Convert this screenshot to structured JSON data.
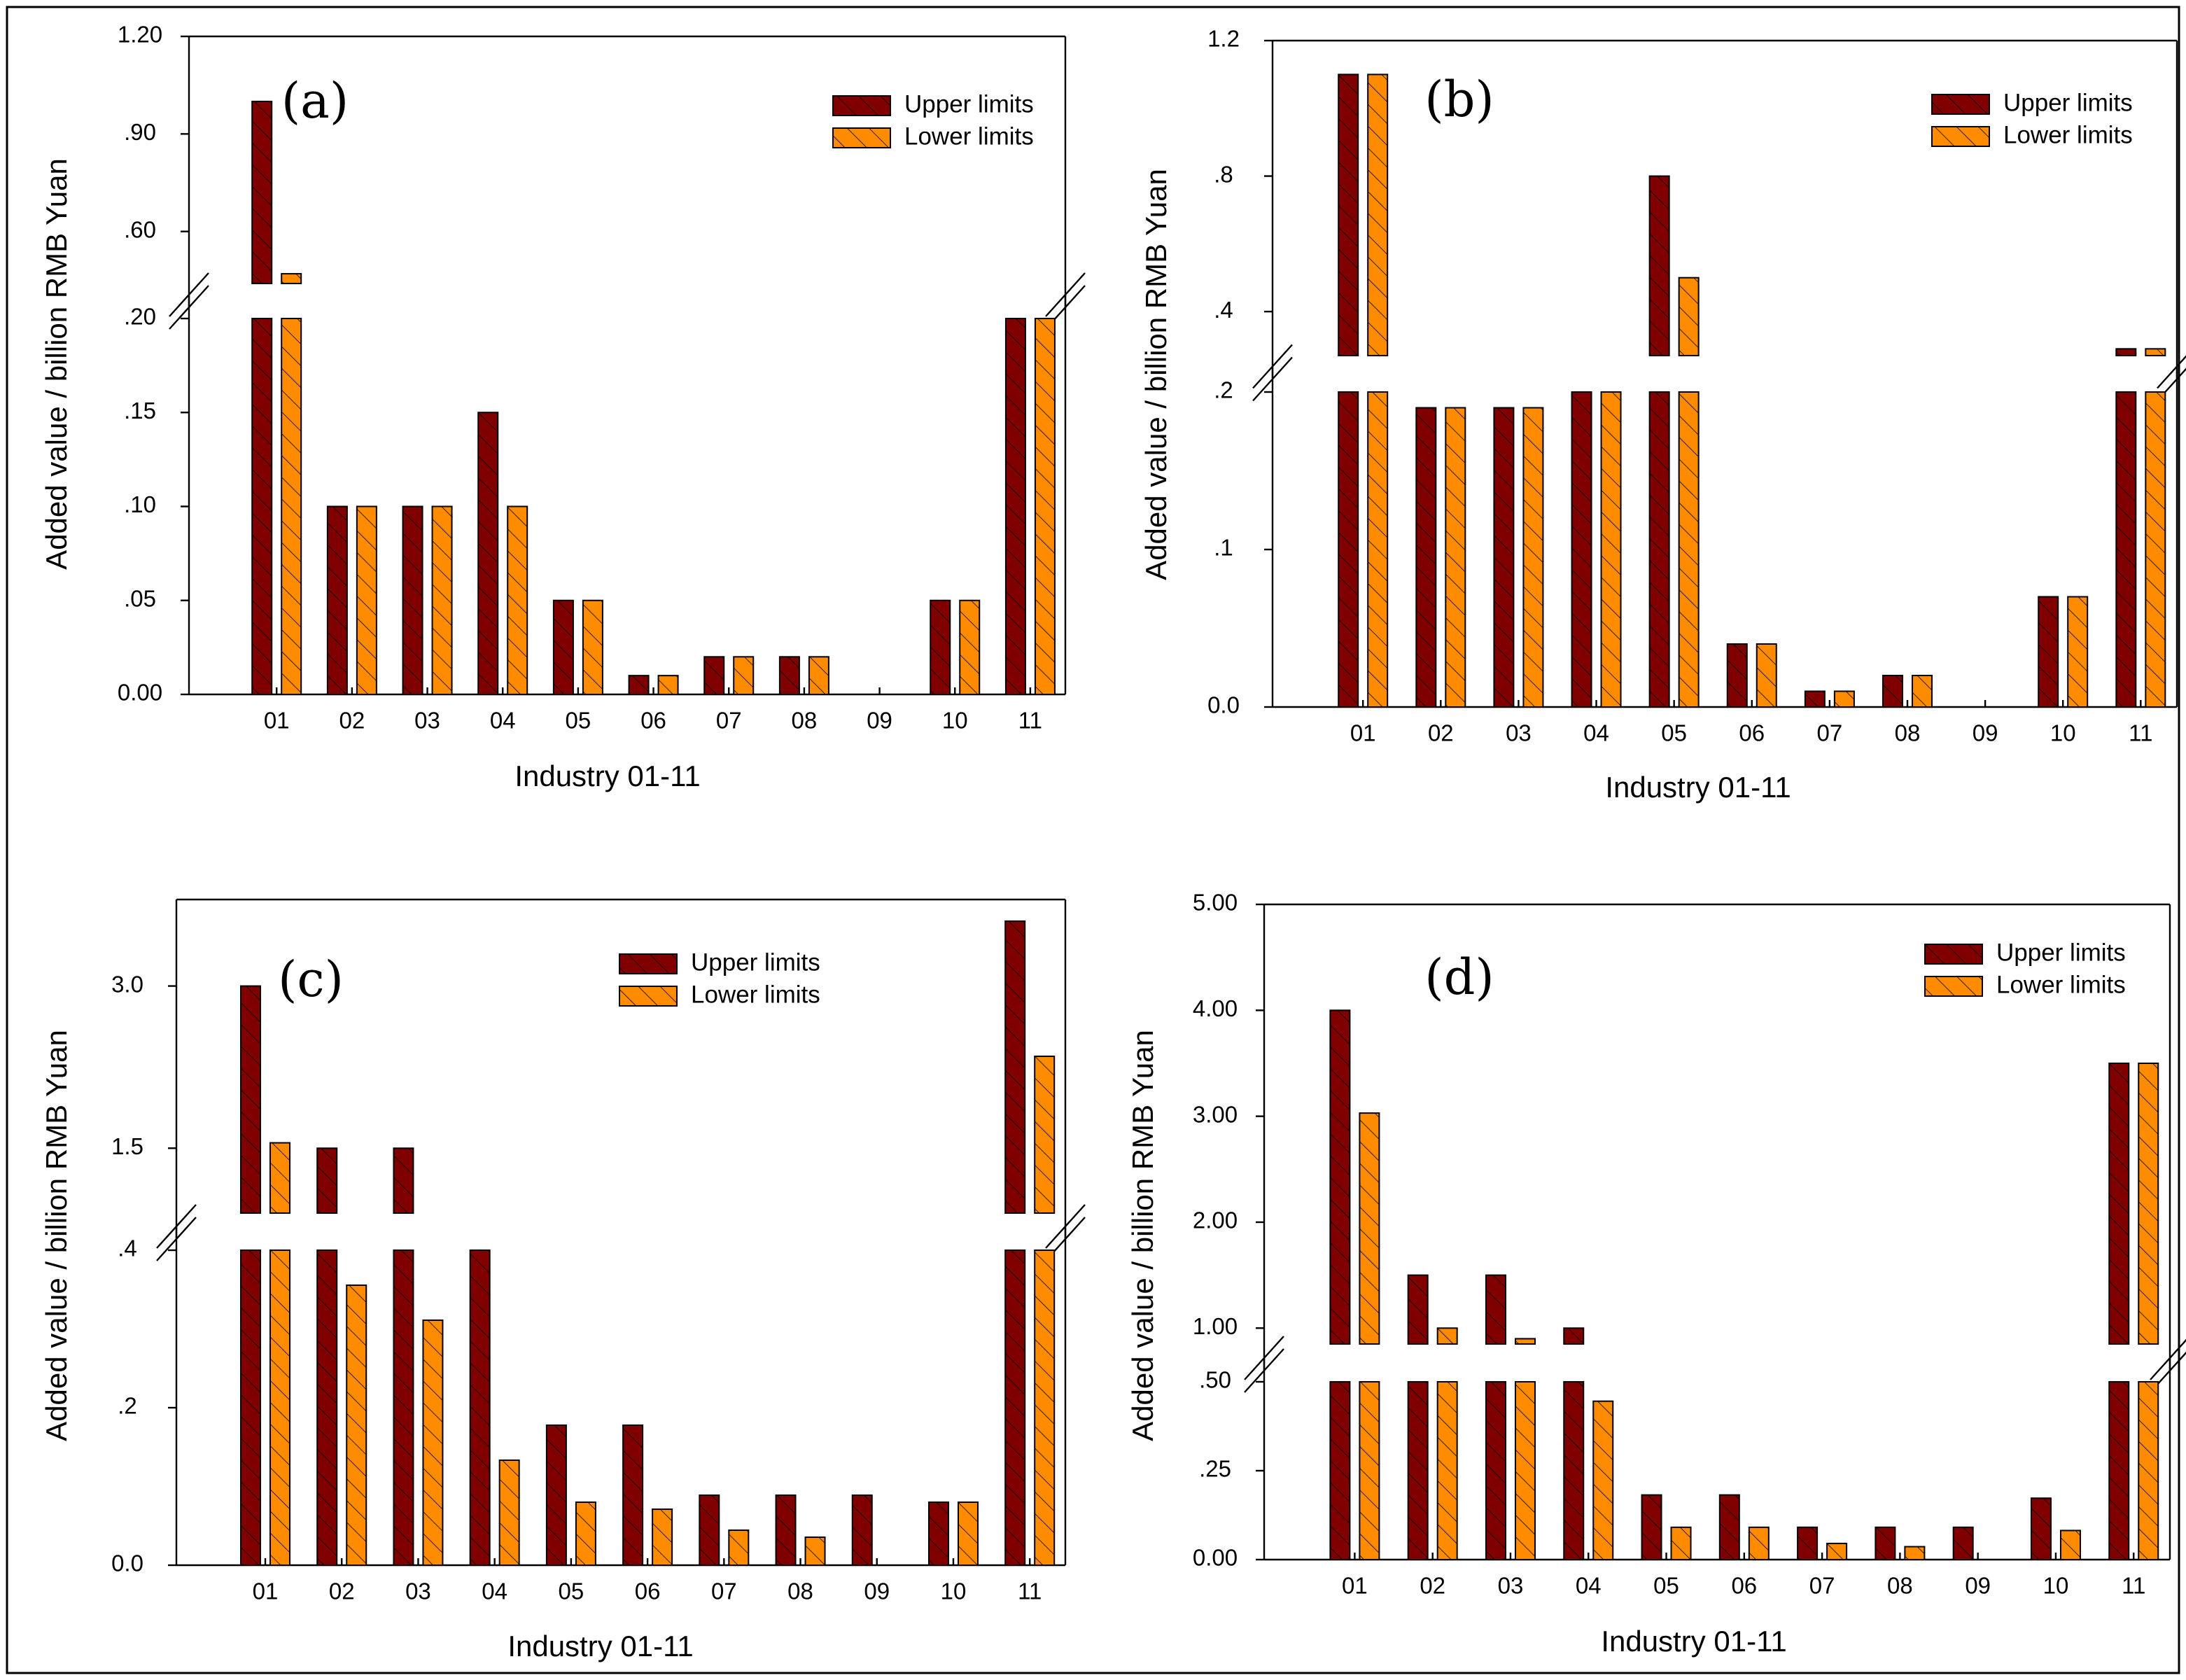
{
  "colors": {
    "upper": "#800000",
    "lower": "#ff8c00",
    "edge": "#000000",
    "background": "#ffffff"
  },
  "chart_data": [
    {
      "type": "bar",
      "panel_label": "(a)",
      "xlabel": "Industry 01-11",
      "ylabel": "Added value / billion RMB Yuan",
      "categories": [
        "01",
        "02",
        "03",
        "04",
        "05",
        "06",
        "07",
        "08",
        "09",
        "10",
        "11"
      ],
      "axis_break": true,
      "lower_ylim": [
        0,
        0.2
      ],
      "lower_yticks": [
        "0.00",
        ".05",
        ".10",
        ".15",
        ".20"
      ],
      "upper_ylim": [
        0.44,
        1.2
      ],
      "upper_yticks": [
        ".60",
        ".90",
        "1.20"
      ],
      "series": [
        {
          "name": "Upper limits",
          "values": [
            1.0,
            0.1,
            0.1,
            0.15,
            0.05,
            0.01,
            0.02,
            0.02,
            0.0,
            0.05,
            0.2
          ]
        },
        {
          "name": "Lower limits",
          "values": [
            0.47,
            0.1,
            0.1,
            0.1,
            0.05,
            0.01,
            0.02,
            0.02,
            0.0,
            0.05,
            0.2
          ]
        }
      ],
      "legend": "top-right",
      "grid": false
    },
    {
      "type": "bar",
      "panel_label": "(b)",
      "xlabel": "Industry 01-11",
      "ylabel": "Added value / billion RMB Yuan",
      "categories": [
        "01",
        "02",
        "03",
        "04",
        "05",
        "06",
        "07",
        "08",
        "09",
        "10",
        "11"
      ],
      "axis_break": true,
      "lower_ylim": [
        0,
        0.2
      ],
      "lower_yticks": [
        "0.0",
        ".1",
        ".2"
      ],
      "upper_ylim": [
        0.27,
        1.2
      ],
      "upper_yticks": [
        ".4",
        ".8",
        "1.2"
      ],
      "series": [
        {
          "name": "Upper limits",
          "values": [
            1.1,
            0.19,
            0.19,
            0.2,
            0.8,
            0.04,
            0.01,
            0.02,
            0.0,
            0.07,
            0.29
          ]
        },
        {
          "name": "Lower limits",
          "values": [
            1.1,
            0.19,
            0.19,
            0.2,
            0.5,
            0.04,
            0.01,
            0.02,
            0.0,
            0.07,
            0.29
          ]
        }
      ],
      "legend": "top-right",
      "grid": false
    },
    {
      "type": "bar",
      "panel_label": "(c)",
      "xlabel": "Industry 01-11",
      "ylabel": "Added value / billion RMB Yuan",
      "categories": [
        "01",
        "02",
        "03",
        "04",
        "05",
        "06",
        "07",
        "08",
        "09",
        "10",
        "11"
      ],
      "axis_break": true,
      "lower_ylim": [
        0,
        0.45
      ],
      "lower_yticks": [
        "0.0",
        ".2",
        ".4"
      ],
      "upper_ylim": [
        0.9,
        3.8
      ],
      "upper_yticks": [
        "1.5",
        "3.0"
      ],
      "series": [
        {
          "name": "Upper limits",
          "values": [
            3.0,
            1.5,
            1.5,
            0.45,
            0.2,
            0.2,
            0.1,
            0.1,
            0.1,
            0.09,
            3.6
          ]
        },
        {
          "name": "Lower limits",
          "values": [
            1.55,
            0.4,
            0.35,
            0.15,
            0.09,
            0.08,
            0.05,
            0.04,
            0.0,
            0.09,
            2.35
          ]
        }
      ],
      "legend": "top-right",
      "grid": false
    },
    {
      "type": "bar",
      "panel_label": "(d)",
      "xlabel": "Industry 01-11",
      "ylabel": "Added value / billion RMB Yuan",
      "categories": [
        "01",
        "02",
        "03",
        "04",
        "05",
        "06",
        "07",
        "08",
        "09",
        "10",
        "11"
      ],
      "axis_break": true,
      "lower_ylim": [
        0,
        0.55
      ],
      "lower_yticks": [
        "0.00",
        ".25",
        ".50"
      ],
      "upper_ylim": [
        0.85,
        5.0
      ],
      "upper_yticks": [
        "1.00",
        "2.00",
        "3.00",
        "4.00",
        "5.00"
      ],
      "series": [
        {
          "name": "Upper limits",
          "values": [
            4.0,
            1.5,
            1.5,
            1.0,
            0.2,
            0.2,
            0.1,
            0.1,
            0.1,
            0.19,
            3.5
          ]
        },
        {
          "name": "Lower limits",
          "values": [
            3.03,
            1.0,
            0.9,
            0.49,
            0.1,
            0.1,
            0.05,
            0.04,
            0.0,
            0.09,
            3.5
          ]
        }
      ],
      "legend": "top-right",
      "grid": false
    }
  ]
}
